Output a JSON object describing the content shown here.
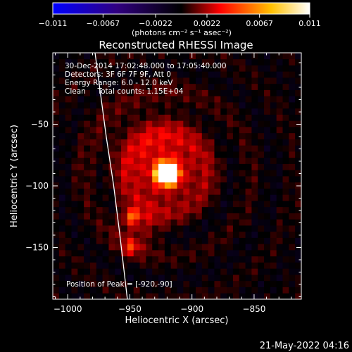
{
  "chart_data": {
    "type": "heatmap",
    "title": "Reconstructed RHESSI Image",
    "xlabel": "Heliocentric X (arcsec)",
    "ylabel": "Heliocentric Y (arcsec)",
    "xlim": [
      -1012,
      -812
    ],
    "ylim": [
      -192,
      8
    ],
    "x_ticks": [
      -1000,
      -950,
      -900,
      -850
    ],
    "x_tick_labels": [
      "−1000",
      "−950",
      "−900",
      "−850"
    ],
    "y_ticks": [
      -50,
      -100,
      -150
    ],
    "y_tick_labels": [
      "−50",
      "−100",
      "−150"
    ],
    "colorbar": {
      "min": -0.011,
      "max": 0.011,
      "ticks": [
        -0.011,
        -0.0067,
        -0.0022,
        0.0022,
        0.0067,
        0.011
      ],
      "tick_labels": [
        "−0.011",
        "−0.0067",
        "−0.0022",
        "0.0022",
        "0.0067",
        "0.011"
      ],
      "unit_label": "(photons cm⁻² s⁻¹ asec⁻²)",
      "colors": [
        "#0000ff",
        "#000000",
        "#ff0000",
        "#ffff00",
        "#ffffff"
      ]
    },
    "annotations": {
      "time_range": "30-Dec-2014 17:02:48.000 to 17:05:40.000",
      "detectors": "Detectors: 3F 6F 7F 9F, Att 0",
      "energy_range": "Energy Range: 6.0 - 12.0 keV",
      "method": "Clean     Total counts: 1.15E+04",
      "peak": "Position of Peak = [-920,-90]"
    },
    "peak": {
      "x": -920,
      "y": -90,
      "value": 0.011
    },
    "sources": [
      {
        "x": -920,
        "y": -90,
        "sigma": 6,
        "amplitude": 0.011
      },
      {
        "x": -920,
        "y": -90,
        "sigma": 20,
        "amplitude": 0.0045
      },
      {
        "x": -949,
        "y": -125,
        "sigma": 4,
        "amplitude": 0.0055
      },
      {
        "x": -949,
        "y": -150,
        "sigma": 4,
        "amplitude": 0.0045
      },
      {
        "x": -944,
        "y": -135,
        "sigma": 13,
        "amplitude": 0.003
      },
      {
        "x": -930,
        "y": -70,
        "sigma": 30,
        "amplitude": 0.0025
      }
    ],
    "limb": [
      [
        -978,
        8
      ],
      [
        -969,
        -60
      ],
      [
        -963,
        -100
      ],
      [
        -958,
        -140
      ],
      [
        -952,
        -192
      ]
    ],
    "grid": false
  },
  "footer": {
    "timestamp": "21-May-2022 04:16"
  }
}
